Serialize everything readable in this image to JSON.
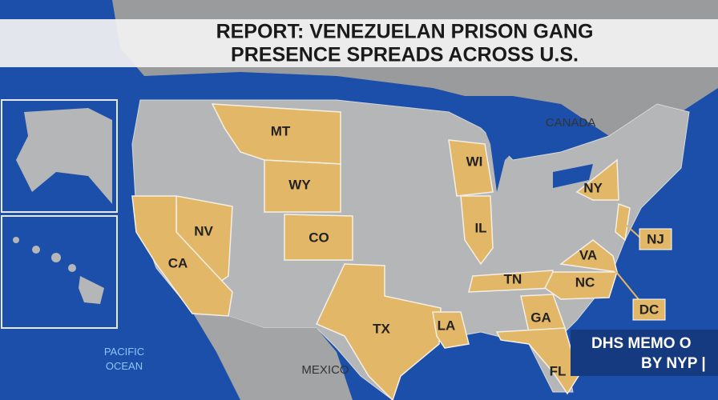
{
  "header": {
    "title_lines": [
      "REPORT: VENEZUELAN PRISON GANG",
      "PRESENCE SPREADS ACROSS U.S."
    ]
  },
  "map": {
    "region_labels": {
      "canada": "CANADA",
      "mexico": "MEXICO",
      "ocean": [
        "PACIFIC",
        "OCEAN"
      ]
    },
    "states": [
      "MT",
      "WY",
      "NV",
      "CO",
      "CA",
      "WI",
      "IL",
      "NY",
      "NJ",
      "VA",
      "TN",
      "NC",
      "DC",
      "GA",
      "LA",
      "TX",
      "FL"
    ]
  },
  "ticker": {
    "lines": [
      "DHS MEMO O",
      "BY NYP |"
    ]
  }
}
